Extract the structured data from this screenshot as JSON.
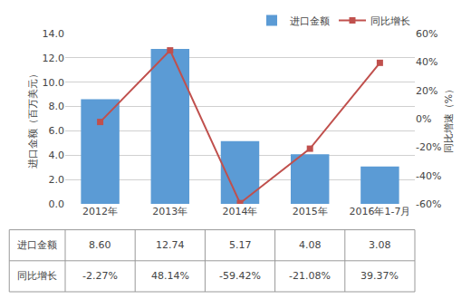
{
  "chart_data": {
    "type": "bar",
    "categories": [
      "2012年",
      "2013年",
      "2014年",
      "2015年",
      "2016年1-7月"
    ],
    "ylabel": "进口金额（百万美元）",
    "y2label": "同比增速（%）",
    "ylim": [
      0.0,
      14.0
    ],
    "yticks": [
      {
        "value": 0.0,
        "label": "0.0"
      },
      {
        "value": 2.0,
        "label": "2.0"
      },
      {
        "value": 4.0,
        "label": "4.0"
      },
      {
        "value": 6.0,
        "label": "6.0"
      },
      {
        "value": 8.0,
        "label": "8.0"
      },
      {
        "value": 10.0,
        "label": "10.0"
      },
      {
        "value": 12.0,
        "label": "12.0"
      },
      {
        "value": 14.0,
        "label": "14.0"
      }
    ],
    "y2lim": [
      -60,
      60
    ],
    "y2ticks": [
      {
        "value": -60,
        "label": "-60%"
      },
      {
        "value": -40,
        "label": "-40%"
      },
      {
        "value": -20,
        "label": "-20%"
      },
      {
        "value": 0,
        "label": "0%"
      },
      {
        "value": 20,
        "label": "20%"
      },
      {
        "value": 40,
        "label": "40%"
      },
      {
        "value": 60,
        "label": "60%"
      }
    ],
    "grid": true,
    "legend": "upper right",
    "series": [
      {
        "name": "进口金额",
        "type": "bar",
        "color": "#5B9BD5",
        "values": [
          8.6,
          12.74,
          5.17,
          4.08,
          3.08
        ]
      },
      {
        "name": "同比增长",
        "type": "line",
        "color": "#C0504D",
        "marker": "square",
        "axis": "y2",
        "values": [
          -2.27,
          48.14,
          -59.42,
          -21.08,
          39.37
        ]
      }
    ],
    "table": [
      {
        "label": "进口金额",
        "values": [
          "8.60",
          "12.74",
          "5.17",
          "4.08",
          "3.08"
        ]
      },
      {
        "label": "同比增长",
        "values": [
          "-2.27%",
          "48.14%",
          "-59.42%",
          "-21.08%",
          "39.37%"
        ]
      }
    ]
  }
}
